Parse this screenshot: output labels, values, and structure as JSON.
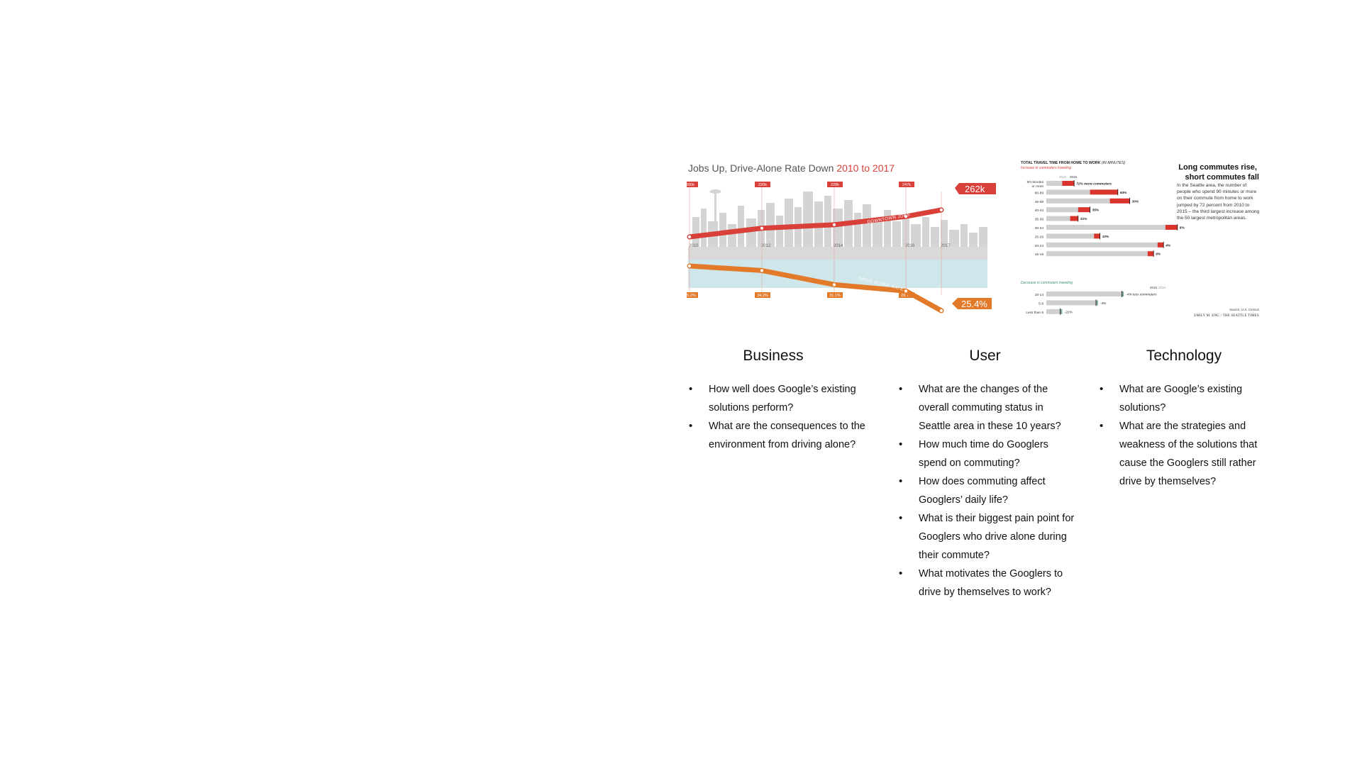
{
  "left_chart": {
    "title_main": "Jobs Up, Drive-Alone Rate Down ",
    "title_years": "2010 to 2017",
    "jobs_line_label": "DOWNTOWN JOBS",
    "drive_line_label": "DRIVE ALONE RATE",
    "jobs_final": "262k",
    "drive_final": "25.4%",
    "colors": {
      "jobs": "#d9403a",
      "drive": "#e27a2a",
      "skyline": "#cfcfcf",
      "water": "#b9dbe2"
    }
  },
  "right_chart": {
    "title": "TOTAL TRAVEL TIME FROM HOME TO WORK",
    "title_units": "(IN MINUTES)",
    "increase_label": "Increase in commuters traveling",
    "decrease_label": "Decrease in commuters traveling",
    "year_2010": "2010",
    "year_2015": "2015",
    "headline": "Long commutes rise, short commutes fall",
    "blurb": "In the Seattle area, the number of people who spend 90 minutes or more on their commute from home to work jumped by 72 percent from 2010 to 2015 – the third largest increase among the 50 largest metropolitan areas.",
    "source": "Source: U.S. Census",
    "credit": "EMILY M. ENG / THE SEATTLE TIMES"
  },
  "chart_data": [
    {
      "type": "line",
      "title": "Jobs Up, Drive-Alone Rate Down 2010 to 2017",
      "x": [
        "2010",
        "2012",
        "2014",
        "2016",
        "2017"
      ],
      "series": [
        {
          "name": "DOWNTOWN JOBS",
          "values": [
            200,
            220,
            228,
            247,
            262
          ],
          "labels": [
            "200k",
            "220k",
            "228k",
            "247k",
            "262k"
          ]
        },
        {
          "name": "DRIVE ALONE RATE",
          "values": [
            35.2,
            34.2,
            31.1,
            29.7,
            25.4
          ],
          "labels": [
            "35.2%",
            "34.2%",
            "31.1%",
            "29.7%",
            "25.4%"
          ]
        }
      ]
    },
    {
      "type": "bar",
      "title": "TOTAL TRAVEL TIME FROM HOME TO WORK (IN MINUTES)",
      "increase": [
        {
          "category": "90 minutes or more",
          "v2010": 4,
          "v2015": 7,
          "label": "72% more commuters"
        },
        {
          "category": "60-89",
          "v2010": 11,
          "v2015": 18,
          "label": "64%"
        },
        {
          "category": "45-59",
          "v2010": 16,
          "v2015": 21,
          "label": "30%"
        },
        {
          "category": "40-44",
          "v2010": 8,
          "v2015": 11,
          "label": "35%"
        },
        {
          "category": "35-39",
          "v2010": 6,
          "v2015": 8,
          "label": "31%"
        },
        {
          "category": "30-34",
          "v2010": 30,
          "v2015": 33,
          "label": "8%"
        },
        {
          "category": "25-29",
          "v2010": 12,
          "v2015": 13.5,
          "label": "10%"
        },
        {
          "category": "20-24",
          "v2010": 28,
          "v2015": 29.5,
          "label": "4%"
        },
        {
          "category": "15-19",
          "v2010": 25.5,
          "v2015": 27,
          "label": "6%"
        }
      ],
      "decrease": [
        {
          "category": "10-14",
          "v2010": 19.5,
          "v2015": 19,
          "label": "-4% less commuters"
        },
        {
          "category": "5-9",
          "v2010": 13,
          "v2015": 12.5,
          "label": "-4%"
        },
        {
          "category": "Less than 5",
          "v2010": 4,
          "v2015": 3.5,
          "label": "-22%"
        }
      ]
    }
  ],
  "columns": [
    {
      "heading": "Business",
      "items": [
        "How well does Google’s existing solutions perform?",
        "What are the consequences to the environment from driving alone?"
      ]
    },
    {
      "heading": "User",
      "items": [
        "What are the changes of the overall commuting status in Seattle area in these 10 years?",
        "How much time do Googlers spend on commuting?",
        "How does commuting affect Googlers’ daily life?",
        "What is their biggest pain point for Googlers who drive alone during their commute?",
        "What motivates the Googlers to drive by themselves to work?"
      ]
    },
    {
      "heading": "Technology",
      "items": [
        "What are Google’s existing solutions?",
        "What are the strategies and weakness of the solutions that cause the Googlers still rather drive by themselves?"
      ]
    }
  ]
}
